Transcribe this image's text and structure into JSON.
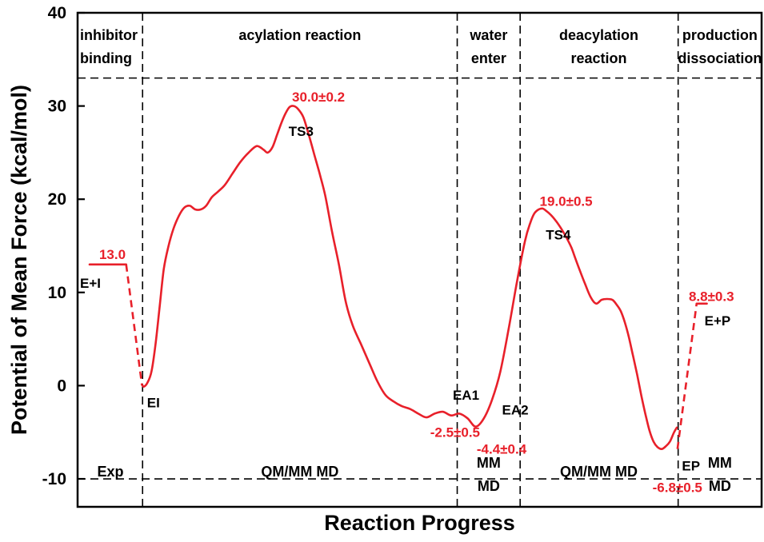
{
  "chart_data": {
    "type": "line",
    "title": "",
    "xlabel": "Reaction Progress",
    "ylabel": "Potential of Mean Force (kcal/mol)",
    "ylim": [
      -13,
      40
    ],
    "xlim": [
      0,
      1
    ],
    "yticks": [
      -10,
      0,
      10,
      20,
      30,
      40
    ],
    "grid": false,
    "separators_x": [
      0.095,
      0.555,
      0.647,
      0.878
    ],
    "separators_y": [
      33,
      -10
    ],
    "stages_top": [
      {
        "line1": "inhibitor",
        "line2": "binding",
        "x": 0.0025,
        "anchor": "start"
      },
      {
        "line1": "acylation reaction",
        "line2": "",
        "x": 0.325,
        "anchor": "middle"
      },
      {
        "line1": "water",
        "line2": "enter",
        "x": 0.601,
        "anchor": "middle"
      },
      {
        "line1": "deacylation",
        "line2": "reaction",
        "x": 0.762,
        "anchor": "middle"
      },
      {
        "line1": "production",
        "line2": "dissociation",
        "x": 0.939,
        "anchor": "middle"
      }
    ],
    "stages_bottom": [
      {
        "line1": "Exp",
        "line2": "",
        "x": 0.048
      },
      {
        "line1": "QM/MM MD",
        "line2": "",
        "x": 0.325
      },
      {
        "line1": "MM",
        "line2": "MD",
        "x": 0.601
      },
      {
        "line1": "QM/MM MD",
        "line2": "",
        "x": 0.762
      },
      {
        "line1": "MM",
        "line2": "MD",
        "x": 0.939
      }
    ],
    "series": [
      {
        "x": [
          0.094,
          0.097,
          0.102,
          0.108,
          0.114,
          0.12,
          0.126,
          0.133,
          0.14,
          0.148,
          0.156,
          0.164,
          0.172,
          0.18,
          0.188,
          0.196,
          0.205,
          0.215,
          0.226,
          0.238,
          0.25,
          0.262,
          0.272,
          0.278,
          0.285,
          0.292,
          0.298,
          0.304,
          0.31,
          0.316,
          0.322,
          0.33,
          0.338,
          0.346,
          0.354,
          0.362,
          0.372,
          0.382,
          0.392,
          0.402,
          0.414,
          0.426,
          0.438,
          0.45,
          0.462,
          0.474,
          0.486,
          0.498,
          0.51,
          0.522,
          0.534,
          0.546,
          0.558,
          0.57,
          0.582,
          0.594,
          0.606,
          0.618,
          0.63,
          0.642,
          0.654,
          0.662,
          0.668,
          0.674,
          0.68,
          0.686,
          0.692,
          0.698,
          0.704,
          0.71,
          0.716,
          0.722,
          0.728,
          0.734,
          0.742,
          0.75,
          0.758,
          0.766,
          0.774,
          0.782,
          0.788,
          0.794,
          0.8,
          0.806,
          0.812,
          0.818,
          0.824,
          0.83,
          0.836,
          0.842,
          0.848,
          0.854,
          0.86,
          0.866,
          0.872,
          0.876
        ],
        "y": [
          0.1,
          -0.1,
          0.3,
          1.5,
          4.5,
          8.5,
          12.5,
          15.0,
          16.8,
          18.2,
          19.1,
          19.3,
          18.9,
          18.9,
          19.3,
          20.2,
          20.8,
          21.5,
          22.7,
          24.0,
          25.0,
          25.7,
          25.3,
          25.0,
          25.6,
          27.0,
          28.2,
          29.2,
          29.9,
          30.0,
          29.7,
          28.8,
          26.9,
          24.8,
          22.7,
          20.4,
          16.5,
          13.0,
          9.0,
          6.5,
          4.5,
          2.5,
          0.5,
          -1.0,
          -1.7,
          -2.2,
          -2.5,
          -3.0,
          -3.4,
          -3.0,
          -2.8,
          -3.2,
          -3.0,
          -3.5,
          -4.4,
          -3.5,
          -1.5,
          1.5,
          6.0,
          11.0,
          15.5,
          17.5,
          18.5,
          18.9,
          19.0,
          18.7,
          18.3,
          17.8,
          17.2,
          16.5,
          15.7,
          14.8,
          13.6,
          12.4,
          10.9,
          9.5,
          8.8,
          9.2,
          9.3,
          9.2,
          8.7,
          8.0,
          6.8,
          5.2,
          3.2,
          1.2,
          -1.0,
          -3.0,
          -4.8,
          -6.0,
          -6.6,
          -6.8,
          -6.5,
          -6.0,
          -5.0,
          -4.5
        ]
      }
    ],
    "initial_level": {
      "y": 13.0,
      "x": [
        0.0,
        0.071
      ]
    },
    "initial_drop": {
      "x": [
        0.071,
        0.094
      ],
      "y": [
        13.0,
        0.1
      ]
    },
    "final_level": {
      "y": 8.8,
      "x": [
        0.905,
        0.955
      ]
    },
    "final_rise": {
      "x": [
        0.877,
        0.905
      ],
      "y": [
        -6.8,
        8.8
      ]
    },
    "state_labels": [
      {
        "text": "E+I",
        "x": 0.0,
        "y": 11.0
      },
      {
        "text": "EI",
        "x": 0.098,
        "y": -1.8
      },
      {
        "text": "TS3",
        "x": 0.305,
        "y": 27.3
      },
      {
        "text": "EA1",
        "x": 0.545,
        "y": -1.0
      },
      {
        "text": "EA2",
        "x": 0.617,
        "y": -2.6
      },
      {
        "text": "TS4",
        "x": 0.681,
        "y": 16.2
      },
      {
        "text": "EP",
        "x": 0.88,
        "y": -8.6
      },
      {
        "text": "E+P",
        "x": 0.913,
        "y": 7.0
      }
    ],
    "value_labels": [
      {
        "text": "13.0",
        "x": 0.028,
        "y": 14.1
      },
      {
        "text": "30.0±0.2",
        "x": 0.31,
        "y": 31.0
      },
      {
        "text": "-2.5±0.5",
        "x": 0.512,
        "y": -5.0
      },
      {
        "text": "-4.4±0.4",
        "x": 0.58,
        "y": -6.8
      },
      {
        "text": "19.0±0.5",
        "x": 0.672,
        "y": 19.8
      },
      {
        "text": "-6.8±0.5",
        "x": 0.837,
        "y": -10.9
      },
      {
        "text": "8.8±0.3",
        "x": 0.89,
        "y": 9.6
      }
    ]
  },
  "colors": {
    "curve": "#e8202a",
    "text": "#000000"
  }
}
